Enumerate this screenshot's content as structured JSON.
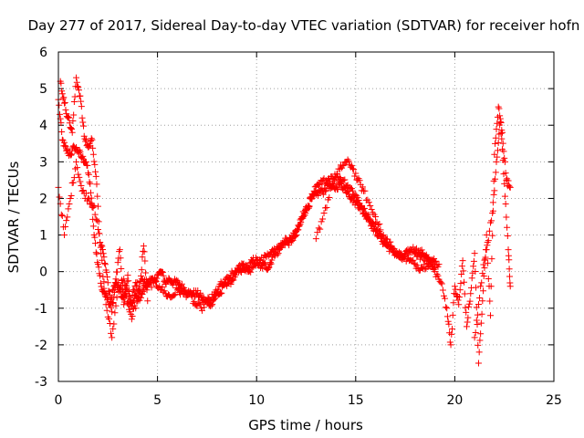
{
  "chart_data": {
    "type": "scatter",
    "title": "Day 277 of 2017, Sidereal Day-to-day VTEC variation (SDTVAR) for receiver hofn",
    "xlabel": "GPS time / hours",
    "ylabel": "SDTVAR / TECUs",
    "xlim": [
      0,
      25
    ],
    "ylim": [
      -3,
      6
    ],
    "xticks": [
      0,
      5,
      10,
      15,
      20,
      25
    ],
    "yticks": [
      -3,
      -2,
      -1,
      0,
      1,
      2,
      3,
      4,
      5,
      6
    ],
    "grid": true,
    "marker": "+",
    "series": [
      {
        "name": "SDTVAR",
        "color": "#ff0000",
        "tracks": [
          {
            "x": [
              0.0,
              0.2,
              0.4,
              0.6,
              0.8,
              1.0,
              1.2,
              1.4,
              1.6,
              1.8,
              2.0,
              2.2,
              2.4,
              2.6,
              2.8,
              3.0,
              3.2,
              3.4,
              3.6,
              3.8,
              4.0,
              4.2,
              4.4,
              4.6,
              4.8,
              5.0,
              5.2,
              5.4,
              5.6,
              5.8,
              6.0,
              6.2,
              6.4,
              6.6,
              6.8,
              7.0,
              7.2,
              7.4,
              7.6,
              7.8,
              8.0,
              8.2,
              8.4,
              8.6,
              8.8,
              9.0,
              9.2,
              9.4,
              9.6,
              9.8,
              10.0,
              10.2,
              10.4,
              10.6,
              10.8,
              11.0,
              11.2,
              11.4,
              11.6,
              11.8,
              12.0,
              12.2,
              12.4,
              12.6,
              12.8,
              13.0,
              13.2,
              13.4,
              13.6,
              13.8,
              14.0,
              14.2,
              14.4,
              14.6,
              14.8,
              15.0,
              15.2,
              15.4,
              15.6,
              15.8,
              16.0,
              16.2,
              16.4,
              16.6,
              16.8,
              17.0,
              17.2,
              17.4,
              17.6,
              17.8,
              18.0,
              18.2,
              18.4,
              18.6,
              18.8,
              19.0
            ],
            "y": [
              4.7,
              3.6,
              3.3,
              3.2,
              3.4,
              3.3,
              3.1,
              3.0,
              2.4,
              1.0,
              0.2,
              -0.5,
              -0.6,
              -0.9,
              -0.4,
              -0.3,
              -0.7,
              -0.6,
              -1.1,
              -0.5,
              -0.8,
              -0.6,
              -0.4,
              -0.2,
              -0.3,
              -0.1,
              0.0,
              -0.3,
              -0.2,
              -0.3,
              -0.3,
              -0.4,
              -0.5,
              -0.6,
              -0.6,
              -0.6,
              -0.7,
              -0.8,
              -0.9,
              -0.8,
              -0.6,
              -0.6,
              -0.3,
              -0.3,
              -0.2,
              0.0,
              0.0,
              0.1,
              0.1,
              0.3,
              0.3,
              0.1,
              0.2,
              0.1,
              0.4,
              0.6,
              0.7,
              0.8,
              0.8,
              0.9,
              1.0,
              1.3,
              1.6,
              1.8,
              2.0,
              2.1,
              2.2,
              2.2,
              2.4,
              2.3,
              2.3,
              2.4,
              2.3,
              2.2,
              2.0,
              1.9,
              1.8,
              1.6,
              1.5,
              1.3,
              1.1,
              1.0,
              0.8,
              0.7,
              0.6,
              0.5,
              0.4,
              0.4,
              0.5,
              0.6,
              0.6,
              0.5,
              0.5,
              0.4,
              0.2,
              0.1
            ]
          },
          {
            "x": [
              0.0,
              0.3,
              0.6,
              0.9,
              1.2,
              1.5,
              1.8,
              2.1,
              2.4,
              2.7,
              3.0,
              3.3,
              3.6,
              3.9,
              4.2,
              4.5,
              4.8,
              5.1,
              5.4,
              5.7,
              6.0,
              6.3,
              6.6,
              6.9,
              7.2,
              7.5,
              7.8,
              8.1,
              8.4,
              8.7,
              9.0,
              9.3,
              9.6,
              9.9,
              10.2,
              10.5,
              10.8,
              11.1,
              11.4,
              11.7,
              12.0,
              12.3,
              12.6,
              12.9,
              13.2,
              13.5,
              13.8,
              14.1,
              14.4,
              14.7,
              15.0,
              15.3,
              15.6,
              15.9,
              16.2,
              16.5,
              16.8,
              17.1,
              17.4,
              17.7,
              18.0,
              18.3,
              18.6,
              18.9,
              19.2
            ],
            "y": [
              2.3,
              1.0,
              2.0,
              3.0,
              2.2,
              2.0,
              1.8,
              0.8,
              -0.9,
              -1.8,
              -0.5,
              -0.2,
              -0.8,
              -1.0,
              -0.2,
              -0.4,
              -0.3,
              -0.4,
              -0.6,
              -0.7,
              -0.5,
              -0.6,
              -0.6,
              -0.9,
              -1.0,
              -0.8,
              -0.7,
              -0.4,
              -0.3,
              -0.1,
              0.0,
              0.2,
              0.0,
              0.2,
              0.3,
              0.4,
              0.6,
              0.5,
              0.8,
              0.9,
              1.1,
              1.5,
              1.8,
              2.2,
              2.4,
              2.5,
              2.6,
              2.6,
              2.5,
              2.3,
              2.1,
              1.8,
              1.5,
              1.3,
              1.1,
              0.9,
              0.7,
              0.5,
              0.4,
              0.3,
              0.2,
              0.1,
              0.2,
              0.3,
              0.2
            ]
          },
          {
            "x": [
              0.1,
              0.3,
              0.5,
              0.7,
              0.9,
              1.1,
              1.3,
              1.5,
              1.7,
              1.9,
              2.1,
              2.3,
              2.5,
              2.7,
              2.9,
              3.1,
              3.3,
              3.5,
              3.7,
              3.9,
              4.1,
              4.3,
              4.5
            ],
            "y": [
              5.2,
              4.6,
              4.2,
              3.8,
              5.3,
              4.8,
              3.7,
              3.4,
              3.6,
              2.6,
              0.8,
              0.4,
              -0.3,
              -1.1,
              -0.2,
              0.6,
              -0.9,
              -0.1,
              -1.3,
              -0.3,
              -0.5,
              0.7,
              -0.8
            ]
          },
          {
            "x": [
              13.0,
              13.4,
              13.8,
              14.2,
              14.5,
              14.8,
              15.1,
              15.4,
              15.8,
              16.2
            ],
            "y": [
              0.9,
              1.6,
              2.3,
              2.8,
              3.0,
              2.9,
              2.5,
              2.2,
              1.7,
              1.3
            ]
          },
          {
            "x": [
              18.0,
              18.5,
              19.0,
              19.3,
              19.6,
              19.8,
              20.0,
              20.2,
              20.4,
              20.6,
              20.8,
              21.0,
              21.2,
              21.4,
              21.6,
              21.8,
              22.0,
              22.2,
              22.4,
              22.6,
              22.8
            ],
            "y": [
              0.5,
              0.3,
              0.0,
              -0.3,
              -1.0,
              -2.0,
              -0.4,
              -0.9,
              0.3,
              -1.5,
              -0.6,
              0.5,
              -2.5,
              -0.8,
              1.0,
              -1.2,
              3.2,
              4.5,
              3.8,
              2.5,
              2.3
            ]
          },
          {
            "x": [
              21.0,
              21.3,
              21.6,
              21.9,
              22.1,
              22.3,
              22.5,
              22.7,
              22.8
            ],
            "y": [
              -1.8,
              -0.4,
              0.6,
              1.6,
              3.0,
              4.1,
              2.4,
              0.6,
              -0.4
            ]
          }
        ]
      }
    ]
  }
}
